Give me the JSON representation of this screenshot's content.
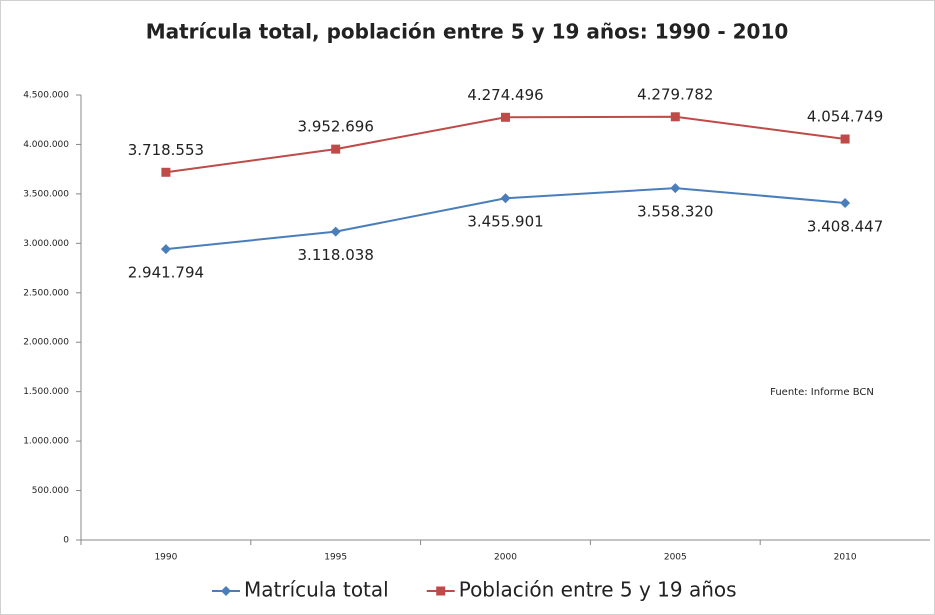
{
  "chart_data": {
    "type": "line",
    "title": "Matrícula total, población entre 5 y 19 años: 1990 - 2010",
    "categories": [
      "1990",
      "1995",
      "2000",
      "2005",
      "2010"
    ],
    "series": [
      {
        "name": "Matrícula total",
        "color": "#4a7ebb",
        "values": [
          2941794,
          3118038,
          3455901,
          3558320,
          3408447
        ],
        "value_labels": [
          "2.941.794",
          "3.118.038",
          "3.455.901",
          "3.558.320",
          "3.408.447"
        ]
      },
      {
        "name": "Población entre 5 y 19 años",
        "color": "#be4b48",
        "values": [
          3718553,
          3952696,
          4274496,
          4279782,
          4054749
        ],
        "value_labels": [
          "3.718.553",
          "3.952.696",
          "4.274.496",
          "4.279.782",
          "4.054.749"
        ]
      }
    ],
    "ylim": [
      0,
      4500000
    ],
    "yticks": [
      {
        "value": 0,
        "label": "0"
      },
      {
        "value": 500000,
        "label": "500.000"
      },
      {
        "value": 1000000,
        "label": "1.000.000"
      },
      {
        "value": 1500000,
        "label": "1.500.000"
      },
      {
        "value": 2000000,
        "label": "2.000.000"
      },
      {
        "value": 2500000,
        "label": "2.500.000"
      },
      {
        "value": 3000000,
        "label": "3.000.000"
      },
      {
        "value": 3500000,
        "label": "3.500.000"
      },
      {
        "value": 4000000,
        "label": "4.000.000"
      },
      {
        "value": 4500000,
        "label": "4.500.000"
      }
    ],
    "grid": false,
    "legend": "bottom",
    "annotations": [
      "Fuente: Informe BCN"
    ]
  }
}
